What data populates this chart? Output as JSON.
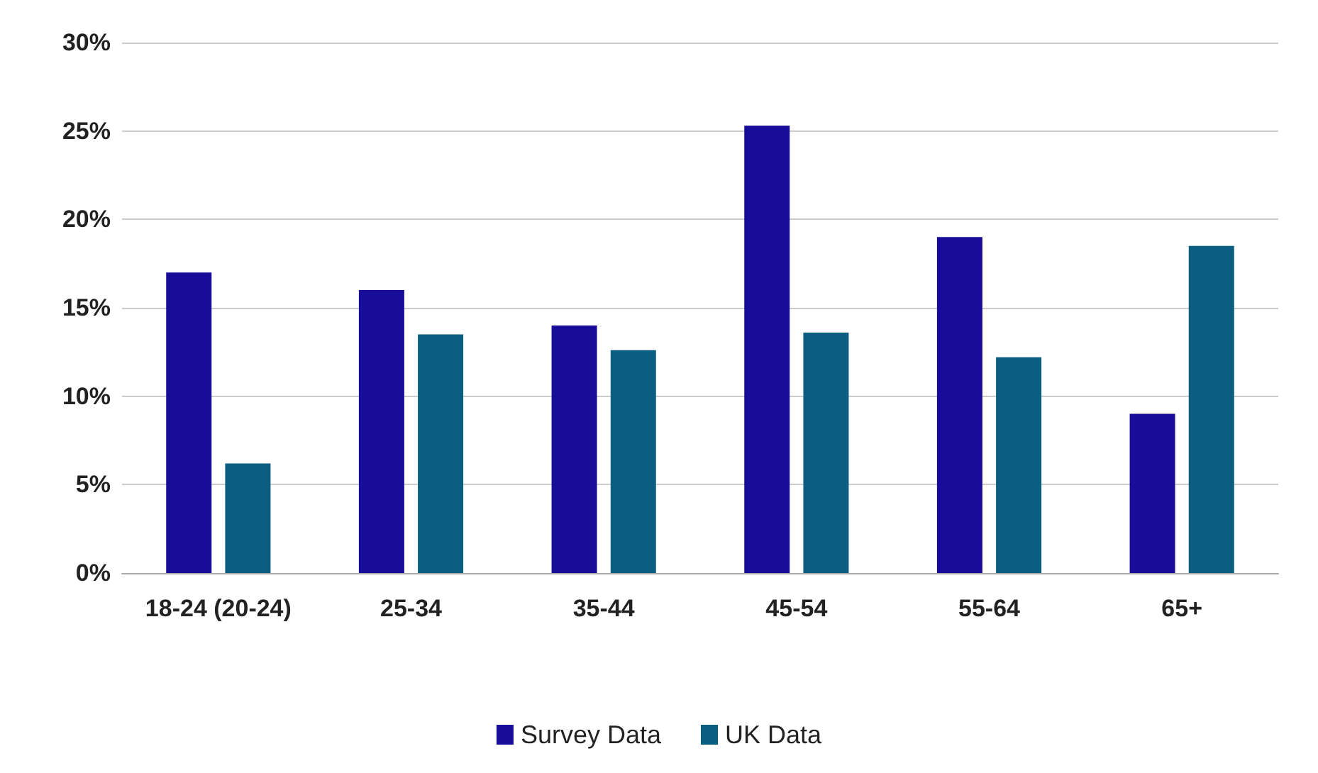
{
  "chart_data": {
    "type": "bar",
    "categories": [
      "18-24 (20-24)",
      "25-34",
      "35-44",
      "45-54",
      "55-64",
      "65+"
    ],
    "series": [
      {
        "name": "Survey Data",
        "color": "#170d98",
        "values": [
          17,
          16,
          14,
          25.3,
          19,
          9
        ]
      },
      {
        "name": "UK Data",
        "color": "#0b5e80",
        "values": [
          6.2,
          13.5,
          12.6,
          13.6,
          12.2,
          18.5
        ]
      }
    ],
    "ylim": [
      0,
      30
    ],
    "yticks": [
      {
        "value": 0,
        "label": "0%"
      },
      {
        "value": 5,
        "label": "5%"
      },
      {
        "value": 10,
        "label": "10%"
      },
      {
        "value": 15,
        "label": "15%"
      },
      {
        "value": 20,
        "label": "20%"
      },
      {
        "value": 25,
        "label": "25%"
      },
      {
        "value": 30,
        "label": "30%"
      }
    ],
    "grid": "y",
    "legend": "bottom"
  }
}
